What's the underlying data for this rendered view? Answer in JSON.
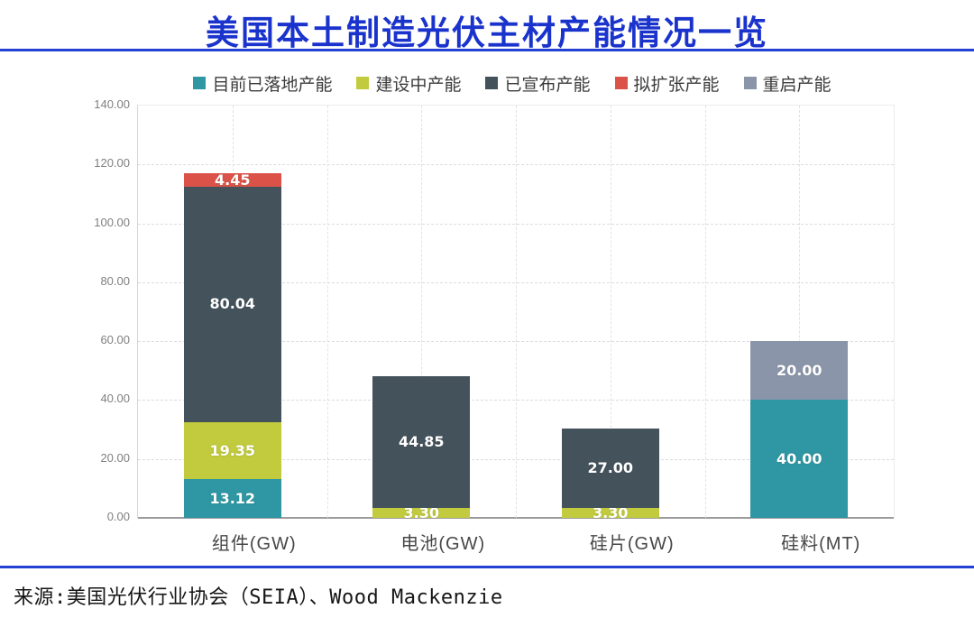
{
  "title": "美国本土制造光伏主材产能情况一览",
  "source": "来源:美国光伏行业协会（SEIA）、Wood Mackenzie",
  "colors": {
    "title_blue": "#1a33cc",
    "rule_blue": "#2341d2",
    "axis_line": "#9b9b9b",
    "tick_text": "#7f7f7f",
    "category_text": "#474747",
    "legend_text": "#3b3b3b"
  },
  "chart_data": {
    "type": "bar",
    "stacked": true,
    "categories": [
      "组件(GW)",
      "电池(GW)",
      "硅片(GW)",
      "硅料(MT)"
    ],
    "series": [
      {
        "name": "目前已落地产能",
        "color": "#2f97a3",
        "values": [
          13.12,
          0,
          0,
          40.0
        ]
      },
      {
        "name": "建设中产能",
        "color": "#c1cb3d",
        "values": [
          19.35,
          3.3,
          3.3,
          0
        ]
      },
      {
        "name": "已宣布产能",
        "color": "#44525c",
        "values": [
          80.04,
          44.85,
          27.0,
          0
        ]
      },
      {
        "name": "拟扩张产能",
        "color": "#db5348",
        "values": [
          4.45,
          0,
          0,
          0
        ]
      },
      {
        "name": "重启产能",
        "color": "#8b95aa",
        "values": [
          0,
          0,
          0,
          20.0
        ]
      }
    ],
    "value_labels": {
      "组件(GW)": [
        "13.12",
        "19.35",
        "80.04",
        "4.45",
        ""
      ],
      "电池(GW)": [
        "",
        "3.30",
        "44.85",
        "",
        ""
      ],
      "硅片(GW)": [
        "",
        "3.30",
        "27.00",
        "",
        ""
      ],
      "硅料(MT)": [
        "40.00",
        "",
        "",
        "",
        "20.00"
      ]
    },
    "ylim": [
      0,
      140
    ],
    "ytick_step": 20,
    "ytick_labels": [
      "0.00",
      "20.00",
      "40.00",
      "60.00",
      "80.00",
      "100.00",
      "120.00",
      "140.00"
    ],
    "grid": true,
    "legend_position": "top"
  }
}
